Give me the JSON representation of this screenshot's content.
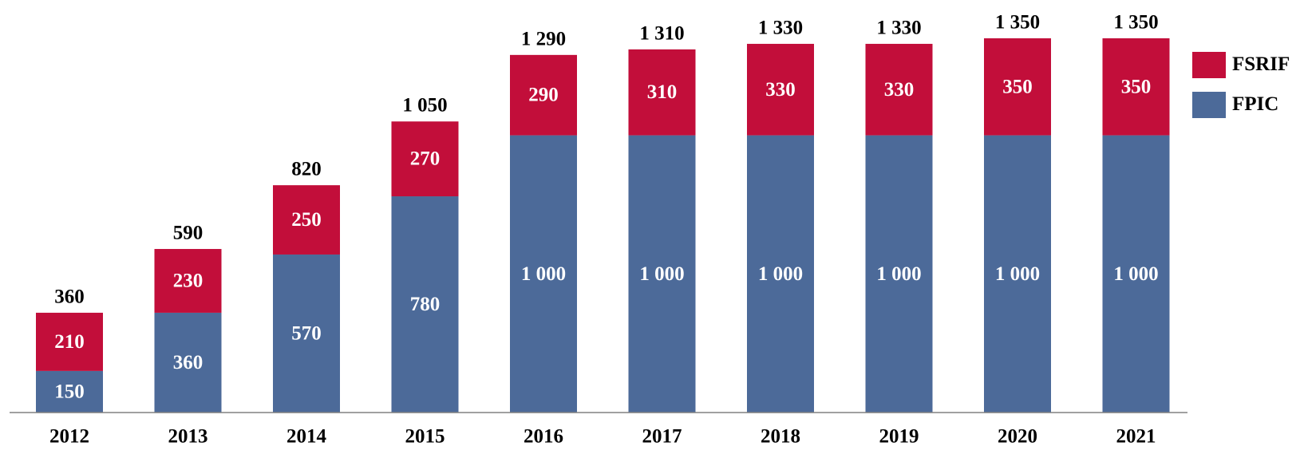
{
  "chart_data": {
    "type": "bar",
    "stacked": true,
    "categories": [
      "2012",
      "2013",
      "2014",
      "2015",
      "2016",
      "2017",
      "2018",
      "2019",
      "2020",
      "2021"
    ],
    "series": [
      {
        "name": "FPIC",
        "color": "#4C6A99",
        "values": [
          150,
          360,
          570,
          780,
          1000,
          1000,
          1000,
          1000,
          1000,
          1000
        ],
        "labels": [
          "150",
          "360",
          "570",
          "780",
          "1 000",
          "1 000",
          "1 000",
          "1 000",
          "1 000",
          "1 000"
        ]
      },
      {
        "name": "FSRIF",
        "color": "#C20E3A",
        "values": [
          210,
          230,
          250,
          270,
          290,
          310,
          330,
          330,
          350,
          350
        ],
        "labels": [
          "210",
          "230",
          "250",
          "270",
          "290",
          "310",
          "330",
          "330",
          "350",
          "350"
        ]
      }
    ],
    "totals": [
      360,
      590,
      820,
      1050,
      1290,
      1310,
      1330,
      1330,
      1350,
      1350
    ],
    "total_labels": [
      "360",
      "590",
      "820",
      "1 050",
      "1 290",
      "1 310",
      "1 330",
      "1 330",
      "1 350",
      "1 350"
    ],
    "title": "",
    "xlabel": "",
    "ylabel": "",
    "ylim": [
      0,
      1350
    ],
    "grid": false,
    "legend_position": "top-right"
  }
}
